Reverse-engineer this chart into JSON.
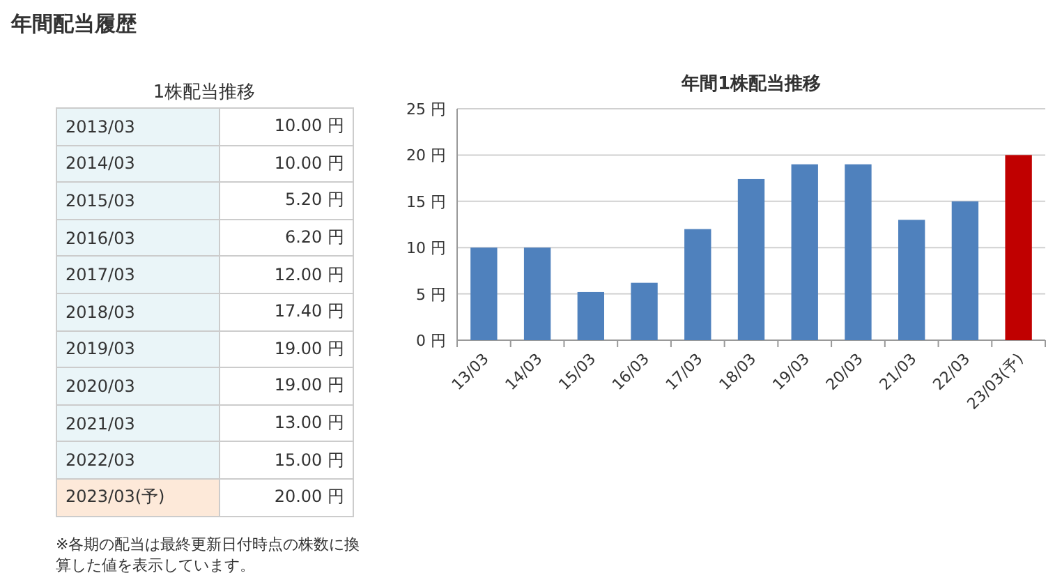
{
  "chart_data": [
    {
      "type": "other",
      "title": "年間配当履歴",
      "subtitle": "1株配当推移",
      "categories": [
        "2013/03",
        "2014/03",
        "2015/03",
        "2016/03",
        "2017/03",
        "2018/03",
        "2019/03",
        "2020/03",
        "2021/03",
        "2022/03",
        "2023/03(予)"
      ],
      "value_labels": [
        "10.00 円",
        "10.00 円",
        "5.20 円",
        "6.20 円",
        "12.00 円",
        "17.40 円",
        "19.00 円",
        "19.00 円",
        "13.00 円",
        "15.00 円",
        "20.00 円"
      ],
      "annotations": [
        "※各期の配当は最終更新日付時点の株数に換算した値を表示しています。"
      ]
    },
    {
      "type": "bar",
      "title": "年間1株配当推移",
      "categories": [
        "13/03",
        "14/03",
        "15/03",
        "16/03",
        "17/03",
        "18/03",
        "19/03",
        "20/03",
        "21/03",
        "22/03",
        "23/03(予)"
      ],
      "values": [
        10.0,
        10.0,
        5.2,
        6.2,
        12.0,
        17.4,
        19.0,
        19.0,
        13.0,
        15.0,
        20.0
      ],
      "colors": [
        "#4f81bd",
        "#4f81bd",
        "#4f81bd",
        "#4f81bd",
        "#4f81bd",
        "#4f81bd",
        "#4f81bd",
        "#4f81bd",
        "#4f81bd",
        "#4f81bd",
        "#c00000"
      ],
      "ylim": [
        0,
        25
      ],
      "yticks": [
        {
          "value": 0,
          "label": "0 円"
        },
        {
          "value": 5,
          "label": "5 円"
        },
        {
          "value": 10,
          "label": "10 円"
        },
        {
          "value": 15,
          "label": "15 円"
        },
        {
          "value": 20,
          "label": "20 円"
        },
        {
          "value": 25,
          "label": "25 円"
        }
      ],
      "grid": "y"
    }
  ]
}
